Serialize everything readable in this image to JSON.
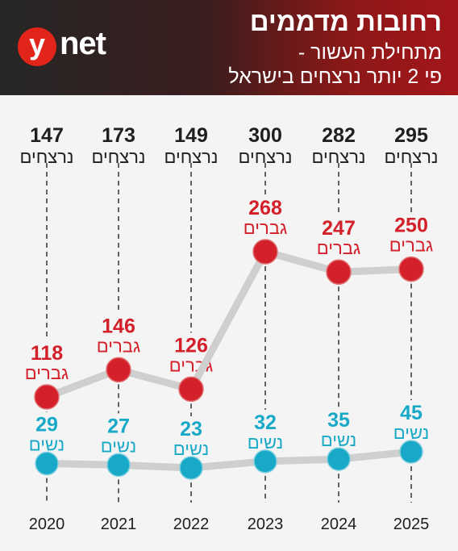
{
  "header": {
    "title": "רחובות מדממים",
    "subtitle_line1": "מתחילת העשור -",
    "subtitle_line2": "פי 2 יותר נרצחים בישראל",
    "logo_y": "y",
    "logo_net": "net"
  },
  "colors": {
    "men": "#d3202a",
    "women": "#19a9c8",
    "total": "#1f1f1f",
    "connector": "#cfcfcf"
  },
  "chart_data": {
    "type": "line",
    "x": [
      "2020",
      "2021",
      "2022",
      "2023",
      "2024",
      "2025"
    ],
    "totals": [
      147,
      173,
      149,
      300,
      282,
      295
    ],
    "total_label": "נרצחים",
    "series": [
      {
        "name": "גברים",
        "values": [
          118,
          146,
          126,
          268,
          247,
          250
        ]
      },
      {
        "name": "נשים",
        "values": [
          29,
          27,
          23,
          32,
          35,
          45
        ]
      }
    ],
    "men_label": "גברים",
    "women_label": "נשים"
  }
}
